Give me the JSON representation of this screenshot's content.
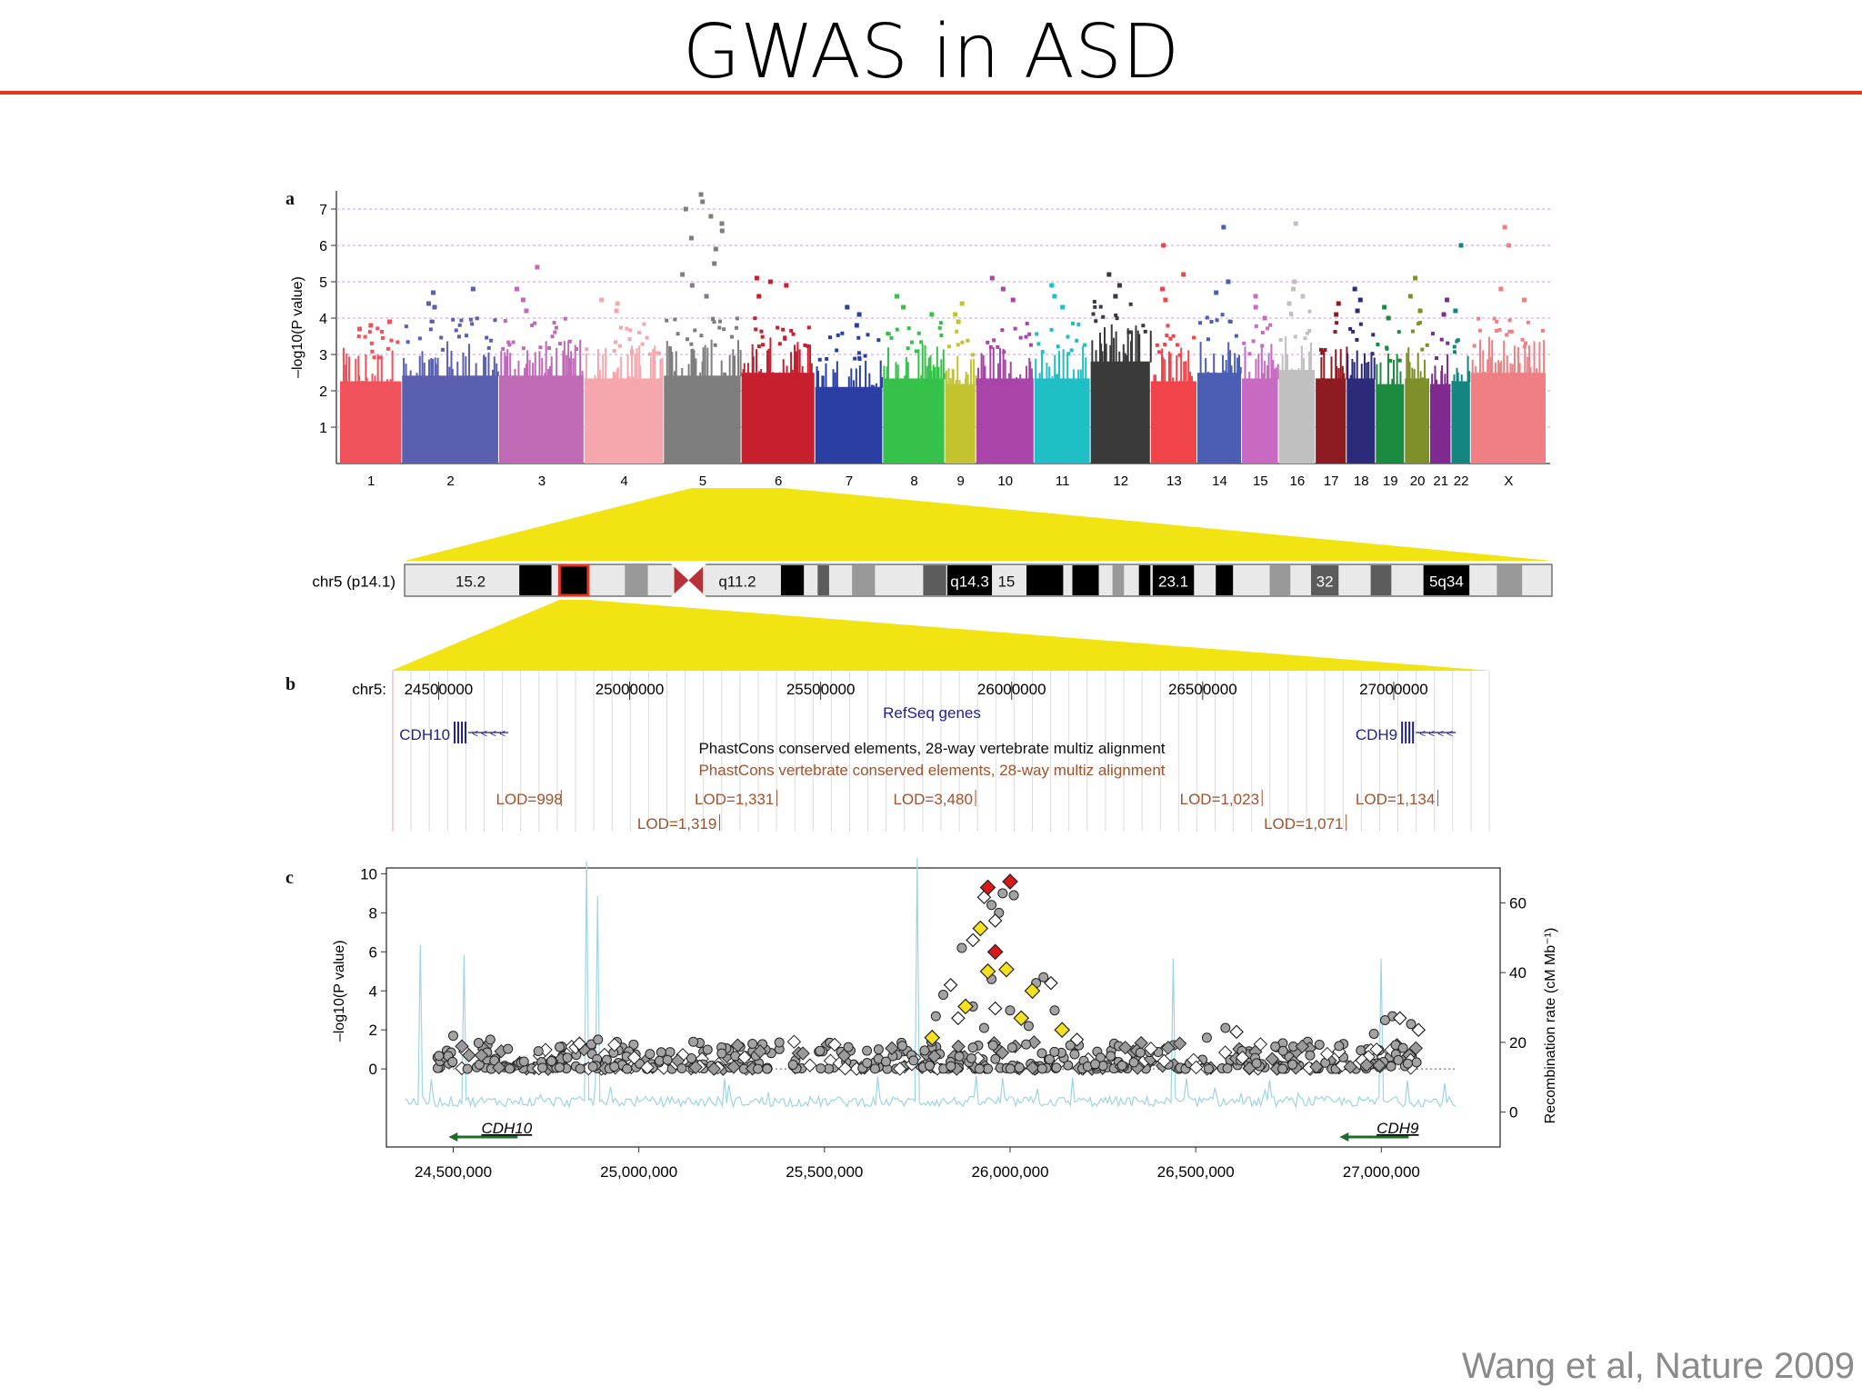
{
  "slide": {
    "title": "GWAS in ASD",
    "citation": "Wang et al, Nature 2009",
    "accent_color": "#e8321e"
  },
  "chart_data": [
    {
      "panel": "a",
      "type": "scatter",
      "subtype": "manhattan",
      "ylabel": "–log10(P value)",
      "ylim": [
        0,
        7.5
      ],
      "yticks": [
        1,
        2,
        3,
        4,
        5,
        6,
        7
      ],
      "grid": "dashed horizontal at each integer",
      "categories": [
        "1",
        "2",
        "3",
        "4",
        "5",
        "6",
        "7",
        "8",
        "9",
        "10",
        "11",
        "12",
        "13",
        "14",
        "15",
        "16",
        "17",
        "18",
        "19",
        "20",
        "21",
        "22",
        "X"
      ],
      "category_colors": [
        "#f0515a",
        "#5b5fb0",
        "#c069b6",
        "#f5a7ad",
        "#7e7e7e",
        "#c6202e",
        "#2a3ea3",
        "#36c24a",
        "#c3c32f",
        "#a944a8",
        "#1fbfc6",
        "#3a3a3a",
        "#f1434a",
        "#4c5eb4",
        "#c96ac2",
        "#c0c0c0",
        "#8e1b21",
        "#2b2b7a",
        "#1b8c3f",
        "#7f8f2a",
        "#7f2a8f",
        "#14857f",
        "#f07f83"
      ],
      "bulk_height": [
        2.9,
        3.1,
        3.1,
        3.0,
        3.1,
        3.2,
        2.7,
        3.0,
        2.8,
        3.0,
        3.0,
        3.6,
        2.9,
        3.2,
        3.0,
        3.3,
        3.0,
        3.0,
        2.8,
        3.0,
        2.8,
        2.9,
        3.2
      ],
      "top_points": [
        {
          "chr": "1",
          "values": [
            3.9,
            3.8,
            3.7
          ]
        },
        {
          "chr": "2",
          "values": [
            4.8,
            4.7,
            4.4,
            4.3
          ]
        },
        {
          "chr": "3",
          "values": [
            5.4,
            4.8,
            4.5,
            4.2
          ]
        },
        {
          "chr": "4",
          "values": [
            4.5,
            4.4,
            4.2
          ]
        },
        {
          "chr": "5",
          "values": [
            7.4,
            7.2,
            7.0,
            6.8,
            6.6,
            6.4,
            6.2,
            5.9,
            5.5,
            5.2,
            4.9,
            4.6
          ]
        },
        {
          "chr": "6",
          "values": [
            5.1,
            5.0,
            4.9,
            4.6
          ]
        },
        {
          "chr": "7",
          "values": [
            4.3,
            4.1,
            3.8
          ]
        },
        {
          "chr": "8",
          "values": [
            4.6,
            4.3,
            4.1
          ]
        },
        {
          "chr": "9",
          "values": [
            4.4,
            4.1,
            3.9
          ]
        },
        {
          "chr": "10",
          "values": [
            5.1,
            4.8,
            4.5
          ]
        },
        {
          "chr": "11",
          "values": [
            4.9,
            4.6,
            4.3
          ]
        },
        {
          "chr": "12",
          "values": [
            5.2,
            4.9,
            4.6
          ]
        },
        {
          "chr": "13",
          "values": [
            6.0,
            5.2,
            4.8,
            4.5
          ]
        },
        {
          "chr": "14",
          "values": [
            6.5,
            5.0,
            4.7
          ]
        },
        {
          "chr": "15",
          "values": [
            4.6,
            4.3,
            4.0
          ]
        },
        {
          "chr": "16",
          "values": [
            6.6,
            5.0,
            4.8,
            4.6,
            4.4
          ]
        },
        {
          "chr": "17",
          "values": [
            4.4,
            4.1
          ]
        },
        {
          "chr": "18",
          "values": [
            4.8,
            4.5,
            4.2
          ]
        },
        {
          "chr": "19",
          "values": [
            4.3,
            4.0
          ]
        },
        {
          "chr": "20",
          "values": [
            5.1,
            4.6,
            4.2
          ]
        },
        {
          "chr": "21",
          "values": [
            4.5,
            4.1
          ]
        },
        {
          "chr": "22",
          "values": [
            6.0,
            4.2
          ]
        },
        {
          "chr": "X",
          "values": [
            6.5,
            6.0,
            4.8,
            4.5
          ]
        }
      ]
    },
    {
      "panel": "ideogram",
      "type": "ideogram",
      "label": "chr5 (p14.1)",
      "bands": [
        {
          "name": "15.2",
          "stain": "gneg",
          "rel": [
            0.035,
            0.08
          ]
        },
        {
          "name": "",
          "stain": "gpos100",
          "rel": [
            0.1,
            0.128
          ]
        },
        {
          "name": "",
          "stain": "highlight",
          "rel": [
            0.135,
            0.16
          ]
        },
        {
          "name": "",
          "stain": "gpos50",
          "rel": [
            0.192,
            0.212
          ]
        },
        {
          "name": "q11.2",
          "stain": "gneg",
          "rel": [
            0.27,
            0.31
          ]
        },
        {
          "name": "",
          "stain": "gpos100",
          "rel": [
            0.328,
            0.348
          ]
        },
        {
          "name": "",
          "stain": "gpos75",
          "rel": [
            0.36,
            0.37
          ]
        },
        {
          "name": "",
          "stain": "gpos50",
          "rel": [
            0.39,
            0.41
          ]
        },
        {
          "name": "",
          "stain": "gpos75",
          "rel": [
            0.452,
            0.472
          ]
        },
        {
          "name": "q14.3",
          "stain": "gpos100",
          "rel": [
            0.473,
            0.512
          ]
        },
        {
          "name": "15",
          "stain": "gneg",
          "rel": [
            0.512,
            0.537
          ]
        },
        {
          "name": "",
          "stain": "gpos100",
          "rel": [
            0.542,
            0.574
          ]
        },
        {
          "name": "",
          "stain": "gpos100",
          "rel": [
            0.582,
            0.605
          ]
        },
        {
          "name": "",
          "stain": "gpos50",
          "rel": [
            0.617,
            0.627
          ]
        },
        {
          "name": "",
          "stain": "gpos100",
          "rel": [
            0.64,
            0.65
          ]
        },
        {
          "name": "23.1",
          "stain": "gpos100",
          "rel": [
            0.652,
            0.688
          ]
        },
        {
          "name": "",
          "stain": "gpos100",
          "rel": [
            0.707,
            0.722
          ]
        },
        {
          "name": "",
          "stain": "gpos50",
          "rel": [
            0.754,
            0.772
          ]
        },
        {
          "name": "32",
          "stain": "gpos75",
          "rel": [
            0.79,
            0.814
          ]
        },
        {
          "name": "",
          "stain": "gpos75",
          "rel": [
            0.842,
            0.86
          ]
        },
        {
          "name": "5q34",
          "stain": "gpos100",
          "rel": [
            0.888,
            0.928
          ]
        },
        {
          "name": "",
          "stain": "gpos50",
          "rel": [
            0.952,
            0.974
          ]
        }
      ]
    },
    {
      "panel": "b",
      "type": "table",
      "subtype": "genome-browser",
      "chrom_label": "chr5:",
      "xlim": [
        24380000,
        27250000
      ],
      "position_ticks": [
        "24500000",
        "25000000",
        "25500000",
        "26000000",
        "26500000",
        "27000000"
      ],
      "position_values": [
        24500000,
        25000000,
        25500000,
        26000000,
        26500000,
        27000000
      ],
      "track_titles": {
        "refseq": "RefSeq genes",
        "phastcons_black": "PhastCons conserved elements, 28-way vertebrate multiz alignment",
        "phastcons_brown": "PhastCons vertebrate conserved elements, 28-way multiz alignment"
      },
      "genes": [
        {
          "name": "CDH10",
          "position": 24530000
        },
        {
          "name": "CDH9",
          "position": 27010000
        }
      ],
      "lod_scores": [
        {
          "label": "LOD=998",
          "row": 1,
          "position": 24650000
        },
        {
          "label": "LOD=1,331",
          "row": 1,
          "position": 25170000
        },
        {
          "label": "LOD=3,480",
          "row": 1,
          "position": 25690000
        },
        {
          "label": "LOD=1,023",
          "row": 1,
          "position": 26440000
        },
        {
          "label": "LOD=1,134",
          "row": 1,
          "position": 26900000
        },
        {
          "label": "LOD=1,319",
          "row": 2,
          "position": 25020000
        },
        {
          "label": "LOD=1,071",
          "row": 2,
          "position": 26660000
        }
      ]
    },
    {
      "panel": "c",
      "type": "scatter",
      "subtype": "regional association",
      "ylabel": "–log10(P value)",
      "ylabel_right": "Recombination rate (cM Mb⁻¹)",
      "xlim": [
        24320000,
        27320000
      ],
      "xticks": [
        "24,500,000",
        "25,000,000",
        "25,500,000",
        "26,000,000",
        "26,500,000",
        "27,000,000"
      ],
      "xtick_values": [
        24500000,
        25000000,
        25500000,
        26000000,
        26500000,
        27000000
      ],
      "ylim": [
        -4,
        10.3
      ],
      "yticks": [
        0,
        2,
        4,
        6,
        8,
        10
      ],
      "y2lim": [
        -10,
        70
      ],
      "y2ticks": [
        0,
        20,
        40,
        60
      ],
      "significance_line": 0,
      "genes": [
        {
          "name": "CDH10",
          "position": 24600000,
          "strand": "-"
        },
        {
          "name": "CDH9",
          "position": 27000000,
          "strand": "-"
        }
      ],
      "recombination_peaks": [
        {
          "position": 24410000,
          "rate": 48
        },
        {
          "position": 24530000,
          "rate": 45
        },
        {
          "position": 24860000,
          "rate": 72
        },
        {
          "position": 24890000,
          "rate": 62
        },
        {
          "position": 25750000,
          "rate": 73
        },
        {
          "position": 26440000,
          "rate": 44
        },
        {
          "position": 27000000,
          "rate": 44
        }
      ],
      "highlighted_points": [
        {
          "x": 25940000,
          "y": 9.3,
          "color": "#d7191c"
        },
        {
          "x": 26000000,
          "y": 9.6,
          "color": "#d7191c"
        },
        {
          "x": 25960000,
          "y": 6.0,
          "color": "#d7191c"
        },
        {
          "x": 25920000,
          "y": 7.2,
          "color": "#f5e11f"
        },
        {
          "x": 25940000,
          "y": 5.0,
          "color": "#f5e11f"
        },
        {
          "x": 25990000,
          "y": 5.1,
          "color": "#f5e11f"
        },
        {
          "x": 26060000,
          "y": 4.0,
          "color": "#f5e11f"
        },
        {
          "x": 25880000,
          "y": 3.2,
          "color": "#f5e11f"
        },
        {
          "x": 26030000,
          "y": 2.6,
          "color": "#f5e11f"
        },
        {
          "x": 26140000,
          "y": 2.0,
          "color": "#f5e11f"
        },
        {
          "x": 25790000,
          "y": 1.6,
          "color": "#f5e11f"
        }
      ],
      "peak_points": [
        {
          "x": 25930000,
          "y": 8.8
        },
        {
          "x": 25950000,
          "y": 8.4
        },
        {
          "x": 25970000,
          "y": 8.0
        },
        {
          "x": 25960000,
          "y": 7.6
        },
        {
          "x": 25980000,
          "y": 9.0
        },
        {
          "x": 26010000,
          "y": 8.9
        },
        {
          "x": 25900000,
          "y": 6.6
        },
        {
          "x": 25870000,
          "y": 6.2
        },
        {
          "x": 25950000,
          "y": 4.6
        },
        {
          "x": 25840000,
          "y": 4.3
        },
        {
          "x": 25820000,
          "y": 3.8
        },
        {
          "x": 26090000,
          "y": 4.7
        },
        {
          "x": 26110000,
          "y": 4.4
        },
        {
          "x": 26070000,
          "y": 4.4
        },
        {
          "x": 25900000,
          "y": 3.2
        },
        {
          "x": 25960000,
          "y": 3.1
        },
        {
          "x": 26000000,
          "y": 3.0
        },
        {
          "x": 26120000,
          "y": 3.0
        },
        {
          "x": 25860000,
          "y": 2.6
        },
        {
          "x": 26050000,
          "y": 2.2
        },
        {
          "x": 25930000,
          "y": 2.1
        },
        {
          "x": 26180000,
          "y": 1.5
        },
        {
          "x": 25800000,
          "y": 2.7
        },
        {
          "x": 27030000,
          "y": 2.7
        },
        {
          "x": 27050000,
          "y": 2.6
        },
        {
          "x": 27010000,
          "y": 2.5
        },
        {
          "x": 27080000,
          "y": 2.3
        },
        {
          "x": 27100000,
          "y": 2.0
        },
        {
          "x": 26980000,
          "y": 1.8
        },
        {
          "x": 26580000,
          "y": 2.1
        },
        {
          "x": 26610000,
          "y": 1.9
        },
        {
          "x": 26530000,
          "y": 1.6
        },
        {
          "x": 24890000,
          "y": 1.5
        },
        {
          "x": 24840000,
          "y": 1.3
        },
        {
          "x": 24600000,
          "y": 1.5
        },
        {
          "x": 24500000,
          "y": 1.7
        }
      ],
      "baseline_range": [
        24450000,
        27100000
      ],
      "baseline_max": 1.4
    }
  ]
}
